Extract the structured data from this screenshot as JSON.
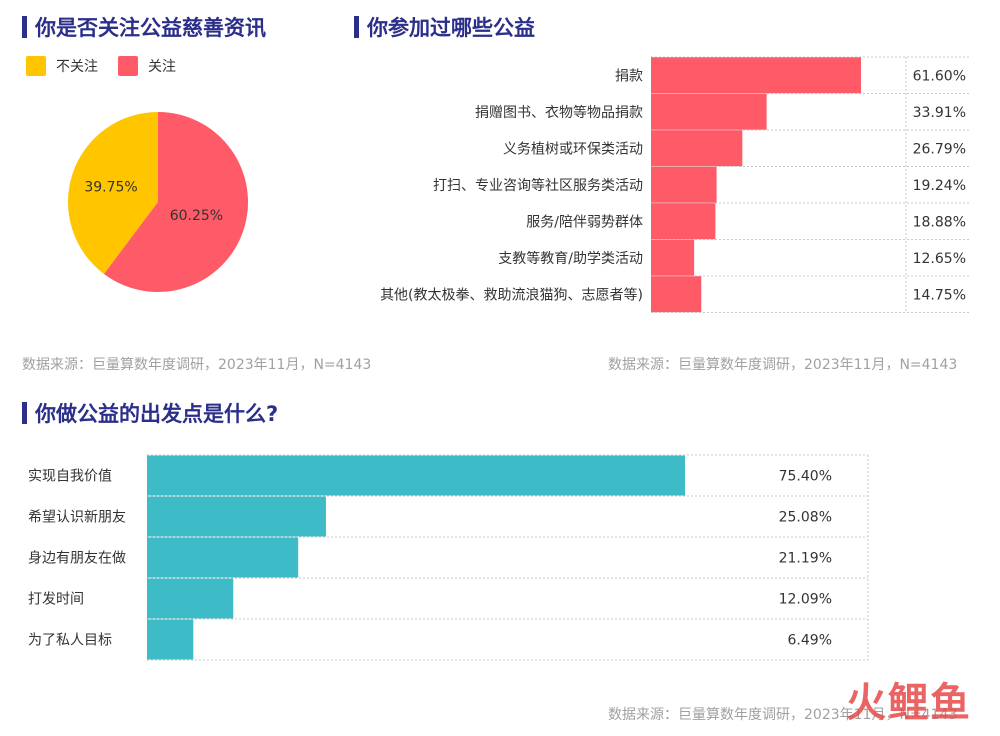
{
  "titles": {
    "t1": "你是否关注公益慈善资讯",
    "t2": "你参加过哪些公益",
    "t3": "你做公益的出发点是什么?"
  },
  "source": "数据来源：巨量算数年度调研，2023年11月，N=4143",
  "watermark": "火鲤鱼",
  "colors": {
    "yellow": "#ffc600",
    "red": "#ff5a68",
    "teal": "#3dbcc8",
    "title": "#2b2f8a"
  },
  "chart_data": [
    {
      "type": "pie",
      "categories": [
        "不关注",
        "关注"
      ],
      "values": [
        39.75,
        60.25
      ],
      "labels": [
        "39.75%",
        "60.25%"
      ],
      "legend_position": "top-left"
    },
    {
      "type": "bar",
      "orientation": "horizontal",
      "categories": [
        "捐款",
        "捐赠图书、衣物等物品捐款",
        "义务植树或环保类活动",
        "打扫、专业咨询等社区服务类活动",
        "服务/陪伴弱势群体",
        "支教等教育/助学类活动",
        "其他(教太极拳、救助流浪猫狗、志愿者等)"
      ],
      "values": [
        61.6,
        33.91,
        26.79,
        19.24,
        18.88,
        12.65,
        14.75
      ],
      "labels": [
        "61.60%",
        "33.91%",
        "26.79%",
        "19.24%",
        "18.88%",
        "12.65%",
        "14.75%"
      ],
      "xlim": [
        0,
        70
      ]
    },
    {
      "type": "bar",
      "orientation": "horizontal",
      "categories": [
        "实现自我价值",
        "希望认识新朋友",
        "身边有朋友在做",
        "打发时间",
        "为了私人目标"
      ],
      "values": [
        75.4,
        25.08,
        21.19,
        12.09,
        6.49
      ],
      "labels": [
        "75.40%",
        "25.08%",
        "21.19%",
        "12.09%",
        "6.49%"
      ],
      "xlim": [
        0,
        100
      ]
    }
  ]
}
